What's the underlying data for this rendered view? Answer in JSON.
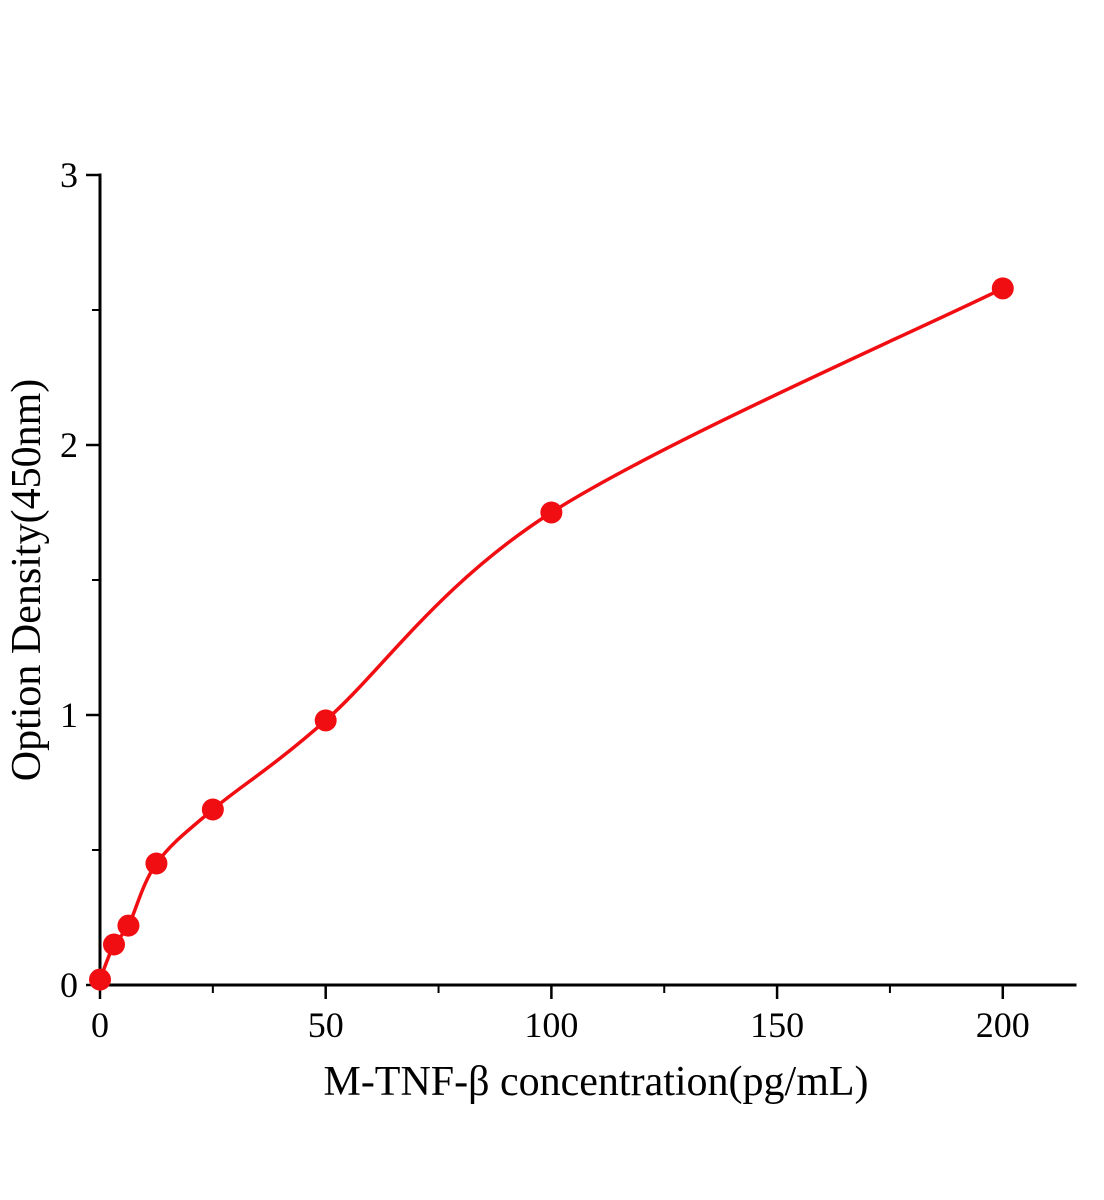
{
  "figure": {
    "background": "#ffffff"
  },
  "chart_data": {
    "type": "scatter",
    "title": "",
    "xlabel": "M-TNF-β concentration(pg/mL)",
    "ylabel": "Option Density(450nm)",
    "x": [
      0,
      3.1,
      6.3,
      12.5,
      25,
      50,
      100,
      200
    ],
    "y": [
      0.02,
      0.15,
      0.22,
      0.45,
      0.65,
      0.98,
      1.75,
      2.58
    ],
    "fitted_curve": true,
    "xlim": [
      0,
      216
    ],
    "ylim": [
      0,
      3
    ],
    "x_ticks": [
      0,
      50,
      100,
      150,
      200
    ],
    "y_ticks": [
      0,
      1,
      2,
      3
    ],
    "x_minor_step": 25,
    "y_minor_step": 0.5,
    "marker_color": "#f10e12",
    "line_color": "#f10e12",
    "axis_color": "#000000",
    "grid": false,
    "legend": "none"
  }
}
